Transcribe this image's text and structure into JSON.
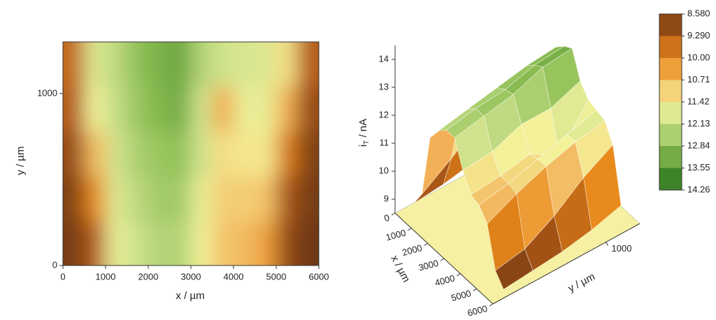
{
  "chart_data": [
    {
      "type": "heatmap",
      "x_label": "x / µm",
      "y_label": "y / µm",
      "xlim": [
        0,
        6000
      ],
      "xticks": [
        0,
        1000,
        2000,
        3000,
        4000,
        5000,
        6000
      ],
      "ylim": [
        0,
        1300
      ],
      "yticks": [
        0,
        1000
      ],
      "x": [
        250,
        750,
        1250,
        1750,
        2250,
        2750,
        3250,
        3750,
        4250,
        4750,
        5250,
        5750
      ],
      "y": [
        130,
        390,
        650,
        910,
        1170
      ],
      "z": [
        [
          8.7,
          9.3,
          11.6,
          12.1,
          12.4,
          12.4,
          11.5,
          10.9,
          10.8,
          10.4,
          9.0,
          8.6
        ],
        [
          8.8,
          10.0,
          11.8,
          12.3,
          12.6,
          12.6,
          11.6,
          11.0,
          11.0,
          10.9,
          9.2,
          8.7
        ],
        [
          9.0,
          10.8,
          12.0,
          12.5,
          12.7,
          12.8,
          12.0,
          11.2,
          11.3,
          11.3,
          9.8,
          8.8
        ],
        [
          9.3,
          11.5,
          12.2,
          12.7,
          13.0,
          13.2,
          12.0,
          10.6,
          11.6,
          11.6,
          10.6,
          9.0
        ],
        [
          9.5,
          11.8,
          12.3,
          12.8,
          13.1,
          13.3,
          12.4,
          12.0,
          11.9,
          11.8,
          11.2,
          9.3
        ]
      ],
      "colorbar_ticks": [
        {
          "value": 8.58,
          "label": "8.580"
        },
        {
          "value": 9.29,
          "label": "9.290"
        },
        {
          "value": 10.0,
          "label": "10.00"
        },
        {
          "value": 10.71,
          "label": "10.71"
        },
        {
          "value": 11.42,
          "label": "11.42"
        },
        {
          "value": 12.13,
          "label": "12.13"
        },
        {
          "value": 12.84,
          "label": "12.84"
        },
        {
          "value": 13.55,
          "label": "13.55"
        },
        {
          "value": 14.26,
          "label": "14.26"
        }
      ],
      "colors": [
        "#6b3812",
        "#b35a16",
        "#e88a1a",
        "#f2b35a",
        "#f5f29a",
        "#c9e08a",
        "#8fbf55",
        "#5a9a35",
        "#1f6e1a"
      ]
    },
    {
      "type": "surface3d",
      "x_label": "x / µm",
      "y_label": "y / µm",
      "z_label": [
        "i",
        "T",
        " / nA"
      ],
      "xlim": [
        0,
        6000
      ],
      "xticks": [
        0,
        1000,
        2000,
        3000,
        4000,
        5000,
        6000
      ],
      "ylim": [
        0,
        1300
      ],
      "yticks": [
        1000
      ],
      "zlim": [
        8.5,
        14.5
      ],
      "zticks": [
        9,
        10,
        11,
        12,
        13,
        14
      ]
    }
  ]
}
